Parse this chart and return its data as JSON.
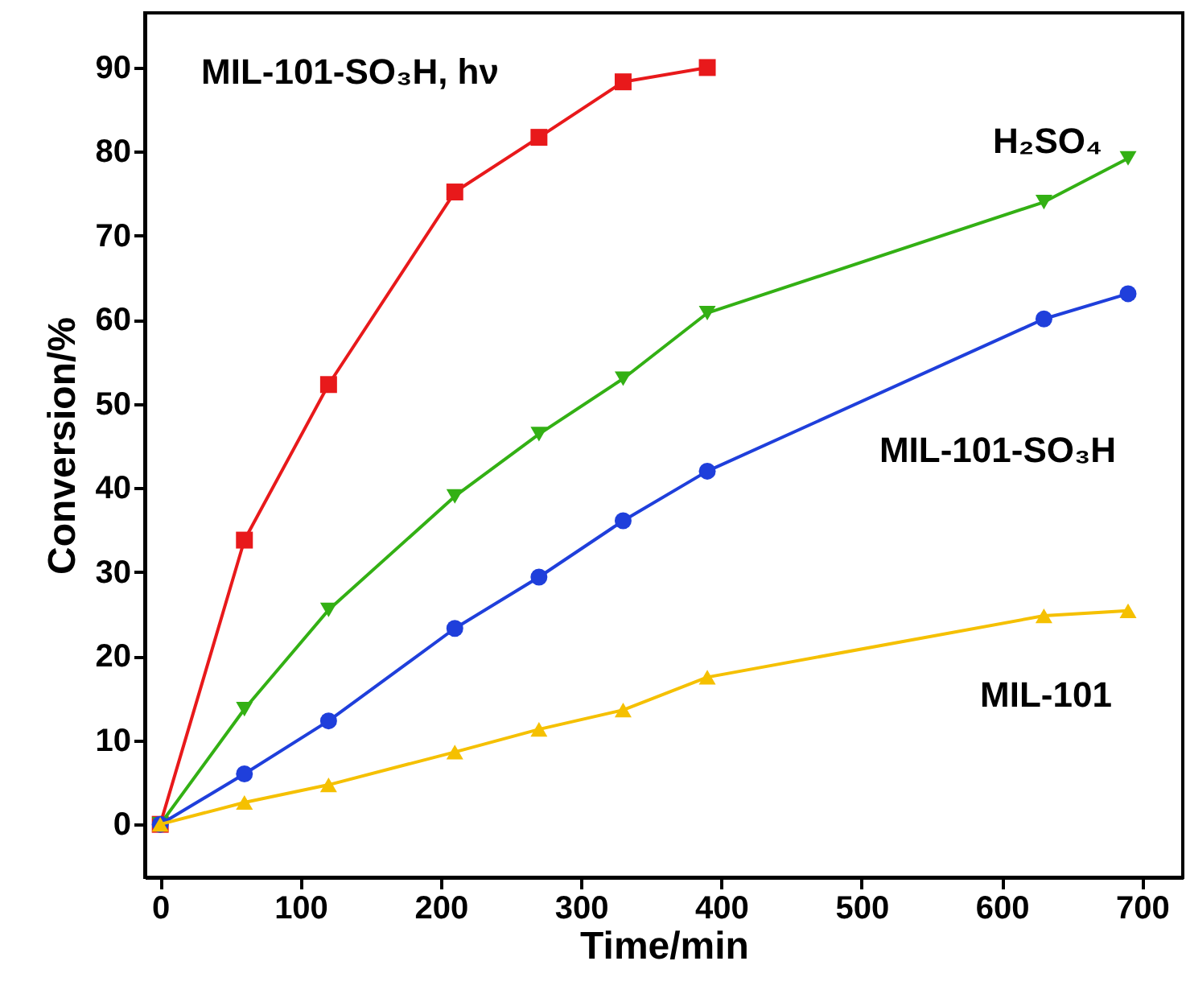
{
  "chart_data": {
    "type": "line",
    "xlabel": "Time/min",
    "ylabel": "Conversion/%",
    "xlim": [
      -11,
      729
    ],
    "ylim": [
      -6.3,
      96.5
    ],
    "xticks": [
      0,
      100,
      200,
      300,
      400,
      500,
      600,
      700
    ],
    "yticks": [
      0,
      10,
      20,
      30,
      40,
      50,
      60,
      70,
      80,
      90
    ],
    "grid": false,
    "series": [
      {
        "name": "MIL-101-SO₃H, hν",
        "color": "#e8191b",
        "marker": "square",
        "x": [
          0,
          60,
          120,
          210,
          270,
          330,
          390
        ],
        "values": [
          0,
          33.8,
          52.3,
          75.2,
          81.7,
          88.3,
          90
        ]
      },
      {
        "name": "H₂SO₄",
        "color": "#33b014",
        "marker": "triangle-down",
        "x": [
          0,
          60,
          120,
          210,
          270,
          330,
          390,
          630,
          690
        ],
        "values": [
          0,
          13.7,
          25.5,
          39,
          46.4,
          53,
          60.8,
          74,
          79.2
        ]
      },
      {
        "name": "MIL-101-SO₃H",
        "color": "#1f3fdb",
        "marker": "circle",
        "x": [
          0,
          60,
          120,
          210,
          270,
          330,
          390,
          630,
          690
        ],
        "values": [
          0,
          6,
          12.3,
          23.3,
          29.4,
          36.1,
          42,
          60.1,
          63.1
        ]
      },
      {
        "name": "MIL-101",
        "color": "#f5c000",
        "marker": "triangle",
        "x": [
          0,
          60,
          120,
          210,
          270,
          330,
          390,
          630,
          690
        ],
        "values": [
          0,
          2.6,
          4.7,
          8.6,
          11.3,
          13.6,
          17.5,
          24.8,
          25.4
        ]
      }
    ]
  }
}
